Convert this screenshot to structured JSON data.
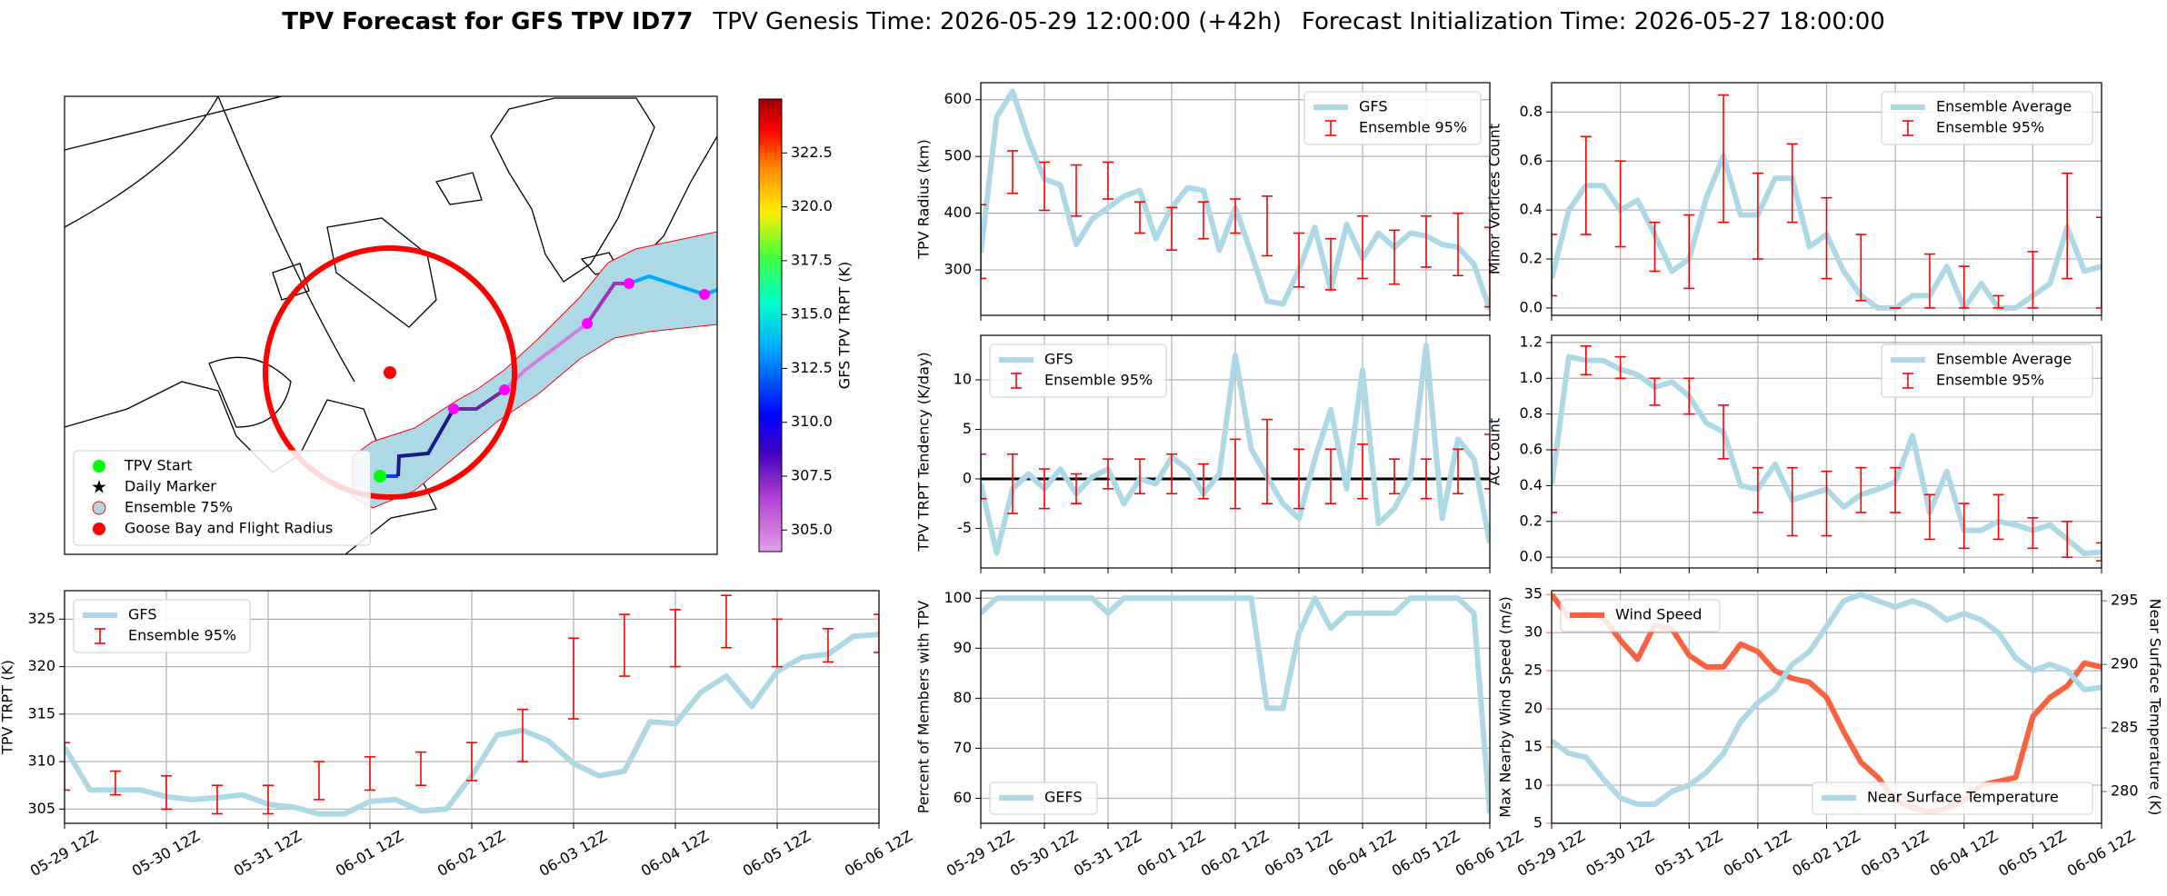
{
  "title": {
    "name": "TPV Forecast for GFS TPV ID77",
    "genesis": "TPV Genesis Time: 2026-05-29 12:00:00 (+42h)",
    "init": "Forecast Initialization Time: 2026-05-27 18:00:00"
  },
  "chart_data": [
    {
      "type": "map",
      "legend_loc": "lower left",
      "legend": [
        {
          "name": "TPV Start",
          "color": "#00ff00",
          "marker": "circle"
        },
        {
          "name": "Daily Marker",
          "color": "#ff00ff",
          "marker": "star"
        },
        {
          "name": "Ensemble 75%",
          "color": "#add8e6",
          "marker": "patch"
        },
        {
          "name": "Goose Bay and Flight Radius",
          "color": "#ff0000",
          "marker": "circle"
        }
      ],
      "colorbar": {
        "label": "GFS TPV TRPT (K)",
        "clim": [
          304,
          325
        ],
        "ticks": [
          {
            "value": 305,
            "label": "305.0"
          },
          {
            "value": 307.5,
            "label": "307.5"
          },
          {
            "value": 310,
            "label": "310.0"
          },
          {
            "value": 312.5,
            "label": "312.5"
          },
          {
            "value": 315,
            "label": "315.0"
          },
          {
            "value": 317.5,
            "label": "317.5"
          },
          {
            "value": 320,
            "label": "320.0"
          },
          {
            "value": 322.5,
            "label": "322.5"
          }
        ]
      }
    },
    {
      "type": "line",
      "ylabel": "TPV TRPT (K)",
      "grid": true,
      "legend": "upper left",
      "categories": [
        "05-29 12Z",
        null,
        null,
        null,
        "05-30 12Z",
        null,
        null,
        null,
        "05-31 12Z",
        null,
        null,
        null,
        "06-01 12Z",
        null,
        null,
        null,
        "06-02 12Z",
        null,
        null,
        null,
        "06-03 12Z",
        null,
        null,
        null,
        "06-04 12Z",
        null,
        null,
        null,
        "06-05 12Z",
        null,
        null,
        null,
        "06-06 12Z"
      ],
      "ylim": [
        303.5,
        328
      ],
      "yticks": [
        305,
        310,
        315,
        320,
        325
      ],
      "series": [
        {
          "name": "GFS",
          "color": "#add8e6",
          "values": [
            311.5,
            307,
            307,
            307,
            306.3,
            306,
            306.2,
            306.5,
            305.5,
            305.2,
            304.5,
            304.5,
            305.8,
            306,
            304.8,
            305,
            308.5,
            312.8,
            313.3,
            312.2,
            309.8,
            308.5,
            309,
            314.2,
            314,
            317.3,
            319,
            315.8,
            319.5,
            321,
            321.3,
            323.2,
            323.4
          ]
        },
        {
          "name": "Ensemble 95%",
          "color": "#ff0000",
          "low": [
            307,
            null,
            306.5,
            null,
            305,
            null,
            304.5,
            null,
            304.5,
            null,
            306,
            null,
            307,
            null,
            307.5,
            null,
            308,
            null,
            310,
            null,
            314.5,
            null,
            319,
            null,
            320,
            null,
            322,
            null,
            320,
            null,
            320.5,
            null,
            321.5
          ],
          "high": [
            312,
            null,
            309,
            null,
            308.5,
            null,
            307.5,
            null,
            307.5,
            null,
            310,
            null,
            310.5,
            null,
            311,
            null,
            312,
            null,
            315.5,
            null,
            323,
            null,
            325.5,
            null,
            326,
            null,
            327.5,
            null,
            325,
            null,
            324,
            null,
            325.5
          ]
        }
      ]
    },
    {
      "type": "line",
      "ylabel": "TPV Radius (km)",
      "grid": true,
      "legend": "upper right",
      "ylim": [
        220,
        630
      ],
      "yticks": [
        300,
        400,
        500,
        600
      ],
      "series": [
        {
          "name": "GFS",
          "color": "#add8e6",
          "values": [
            330,
            570,
            615,
            530,
            460,
            450,
            345,
            390,
            410,
            430,
            440,
            355,
            410,
            445,
            440,
            335,
            410,
            330,
            245,
            240,
            300,
            375,
            265,
            380,
            320,
            365,
            340,
            365,
            360,
            345,
            340,
            310,
            230
          ]
        },
        {
          "name": "Ensemble 95%",
          "color": "#ff0000",
          "low": [
            285,
            null,
            435,
            null,
            405,
            null,
            395,
            null,
            425,
            null,
            365,
            null,
            335,
            null,
            355,
            null,
            365,
            null,
            325,
            null,
            270,
            null,
            265,
            null,
            285,
            null,
            275,
            null,
            305,
            null,
            290,
            null,
            235
          ],
          "high": [
            415,
            null,
            510,
            null,
            490,
            null,
            485,
            null,
            490,
            null,
            420,
            null,
            410,
            null,
            420,
            null,
            425,
            null,
            430,
            null,
            365,
            null,
            355,
            null,
            395,
            null,
            370,
            null,
            395,
            null,
            400,
            null,
            375
          ]
        }
      ]
    },
    {
      "type": "line",
      "ylabel": "TPV TRPT Tendency (K/day)",
      "grid": true,
      "legend": "upper left",
      "hline": 0,
      "ylim": [
        -9,
        14.5
      ],
      "yticks": [
        -5,
        0,
        5,
        10
      ],
      "series": [
        {
          "name": "GFS",
          "color": "#add8e6",
          "values": [
            -0.5,
            -7.5,
            -1,
            0.5,
            -1,
            1,
            -1.5,
            0.2,
            1,
            -2.5,
            0,
            -0.5,
            2.2,
            1,
            -1.5,
            0.5,
            12.5,
            3,
            0.2,
            -2.5,
            -4,
            2,
            7,
            -1,
            11,
            -4.5,
            -3,
            0,
            13.5,
            -4,
            4,
            2,
            -6.5
          ]
        },
        {
          "name": "Ensemble 95%",
          "color": "#ff0000",
          "low": [
            -2,
            null,
            -3.5,
            null,
            -3,
            null,
            -2.5,
            null,
            -1,
            null,
            -1.5,
            null,
            -1.5,
            null,
            -2,
            null,
            -3,
            null,
            -2.5,
            null,
            -3,
            null,
            -2.5,
            null,
            -2,
            null,
            -1.5,
            null,
            -2,
            null,
            -1.5,
            null,
            -1
          ],
          "high": [
            2.5,
            null,
            2.5,
            null,
            1,
            null,
            0.5,
            null,
            2,
            null,
            2,
            null,
            2.5,
            null,
            1.5,
            null,
            4,
            null,
            6,
            null,
            3,
            null,
            3,
            null,
            3.5,
            null,
            2,
            null,
            2,
            null,
            3,
            null,
            4.5
          ]
        }
      ]
    },
    {
      "type": "line",
      "ylabel": "Percent of Members with TPV",
      "grid": true,
      "legend": "lower left",
      "categories": [
        "05-29 12Z",
        null,
        null,
        null,
        "05-30 12Z",
        null,
        null,
        null,
        "05-31 12Z",
        null,
        null,
        null,
        "06-01 12Z",
        null,
        null,
        null,
        "06-02 12Z",
        null,
        null,
        null,
        "06-03 12Z",
        null,
        null,
        null,
        "06-04 12Z",
        null,
        null,
        null,
        "06-05 12Z",
        null,
        null,
        null,
        "06-06 12Z"
      ],
      "ylim": [
        55,
        101.5
      ],
      "yticks": [
        60,
        70,
        80,
        90,
        100
      ],
      "series": [
        {
          "name": "GEFS",
          "color": "#add8e6",
          "values": [
            97,
            100,
            100,
            100,
            100,
            100,
            100,
            100,
            97,
            100,
            100,
            100,
            100,
            100,
            100,
            100,
            100,
            100,
            78,
            78,
            93,
            100,
            94,
            97,
            97,
            97,
            97,
            100,
            100,
            100,
            100,
            97,
            57
          ]
        }
      ]
    },
    {
      "type": "line",
      "ylabel": "Minor Vortices Count",
      "grid": true,
      "legend": "upper right",
      "ylim": [
        -0.03,
        0.92
      ],
      "yticks": [
        {
          "value": 0,
          "label": "0.0"
        },
        0.2,
        0.4,
        0.6,
        0.8
      ],
      "series": [
        {
          "name": "Ensemble Average",
          "color": "#add8e6",
          "values": [
            0.12,
            0.4,
            0.5,
            0.5,
            0.4,
            0.44,
            0.3,
            0.15,
            0.2,
            0.45,
            0.62,
            0.38,
            0.38,
            0.53,
            0.53,
            0.25,
            0.3,
            0.15,
            0.05,
            0,
            0,
            0.05,
            0.05,
            0.17,
            0,
            0.1,
            0,
            0,
            0.05,
            0.1,
            0.33,
            0.15,
            0.17
          ]
        },
        {
          "name": "Ensemble 95%",
          "color": "#ff0000",
          "low": [
            0.05,
            null,
            0.3,
            null,
            0.25,
            null,
            0.15,
            null,
            0.08,
            null,
            0.35,
            null,
            0.2,
            null,
            0.35,
            null,
            0.12,
            null,
            0.03,
            null,
            0,
            null,
            0,
            null,
            0,
            null,
            0,
            null,
            0,
            null,
            0.12,
            null,
            0
          ],
          "high": [
            0.3,
            null,
            0.7,
            null,
            0.6,
            null,
            0.35,
            null,
            0.38,
            null,
            0.87,
            null,
            0.55,
            null,
            0.67,
            null,
            0.45,
            null,
            0.3,
            null,
            0,
            null,
            0.22,
            null,
            0.17,
            null,
            0.05,
            null,
            0.23,
            null,
            0.55,
            null,
            0.37
          ]
        }
      ]
    },
    {
      "type": "line",
      "ylabel": "AC Count",
      "grid": true,
      "legend": "upper right",
      "ylim": [
        -0.06,
        1.24
      ],
      "yticks": [
        {
          "value": 0,
          "label": "0.0"
        },
        0.2,
        0.4,
        0.6,
        0.8,
        {
          "value": 1,
          "label": "1.0"
        },
        1.2
      ],
      "series": [
        {
          "name": "Ensemble Average",
          "color": "#add8e6",
          "values": [
            0.4,
            1.12,
            1.1,
            1.1,
            1.05,
            1.02,
            0.95,
            0.98,
            0.9,
            0.75,
            0.7,
            0.4,
            0.38,
            0.52,
            0.32,
            0.35,
            0.38,
            0.28,
            0.35,
            0.38,
            0.42,
            0.68,
            0.25,
            0.48,
            0.15,
            0.15,
            0.2,
            0.18,
            0.15,
            0.18,
            0.1,
            0.02,
            0.03
          ]
        },
        {
          "name": "Ensemble 95%",
          "color": "#ff0000",
          "low": [
            0.25,
            null,
            1.02,
            null,
            1,
            null,
            0.85,
            null,
            0.8,
            null,
            0.55,
            null,
            0.25,
            null,
            0.12,
            null,
            0.12,
            null,
            0.25,
            null,
            0.25,
            null,
            0.1,
            null,
            0.05,
            null,
            0.1,
            null,
            0.05,
            null,
            0,
            null,
            -0.02
          ],
          "high": [
            0.6,
            null,
            1.18,
            null,
            1.12,
            null,
            1,
            null,
            1,
            null,
            0.85,
            null,
            0.5,
            null,
            0.5,
            null,
            0.48,
            null,
            0.5,
            null,
            0.5,
            null,
            0.35,
            null,
            0.3,
            null,
            0.35,
            null,
            0.22,
            null,
            0.2,
            null,
            0.08
          ]
        }
      ]
    },
    {
      "type": "line",
      "ylabel": "Max Nearby Wind Speed (m/s)",
      "y2label": "Near Surface Temperature (K)",
      "grid": true,
      "legend": [
        "upper left",
        "lower right"
      ],
      "categories": [
        "05-29 12Z",
        null,
        null,
        null,
        "05-30 12Z",
        null,
        null,
        null,
        "05-31 12Z",
        null,
        null,
        null,
        "06-01 12Z",
        null,
        null,
        null,
        "06-02 12Z",
        null,
        null,
        null,
        "06-03 12Z",
        null,
        null,
        null,
        "06-04 12Z",
        null,
        null,
        null,
        "06-05 12Z",
        null,
        null,
        null,
        "06-06 12Z"
      ],
      "ylim": [
        5,
        35.5
      ],
      "yticks": [
        5,
        10,
        15,
        20,
        25,
        30,
        35
      ],
      "y2lim": [
        277.5,
        295.8
      ],
      "y2ticks": [
        280,
        285,
        290,
        295
      ],
      "series": [
        {
          "name": "Wind Speed",
          "color": "#f9613f",
          "values": [
            35,
            32,
            32.5,
            32,
            29,
            26.5,
            31,
            30.5,
            27,
            25.5,
            25.5,
            28.5,
            27.5,
            25,
            24,
            23.5,
            21.5,
            17,
            13,
            11,
            8,
            7,
            6.5,
            7,
            8,
            10,
            10.5,
            11,
            19,
            21.5,
            23,
            26,
            25.5
          ]
        },
        {
          "name": "Near Surface Temperature",
          "color": "#add8e6",
          "axis": "y2",
          "axis_color": "#4169e1",
          "values": [
            284,
            283,
            282.7,
            281,
            279.5,
            279,
            279,
            280,
            280.5,
            281.5,
            283,
            285.5,
            287,
            288,
            290,
            291,
            293,
            295,
            295.5,
            295,
            294.5,
            295,
            294.5,
            293.5,
            294,
            293.5,
            292.5,
            290.5,
            289.5,
            290,
            289.5,
            288,
            288.2
          ]
        }
      ]
    }
  ]
}
